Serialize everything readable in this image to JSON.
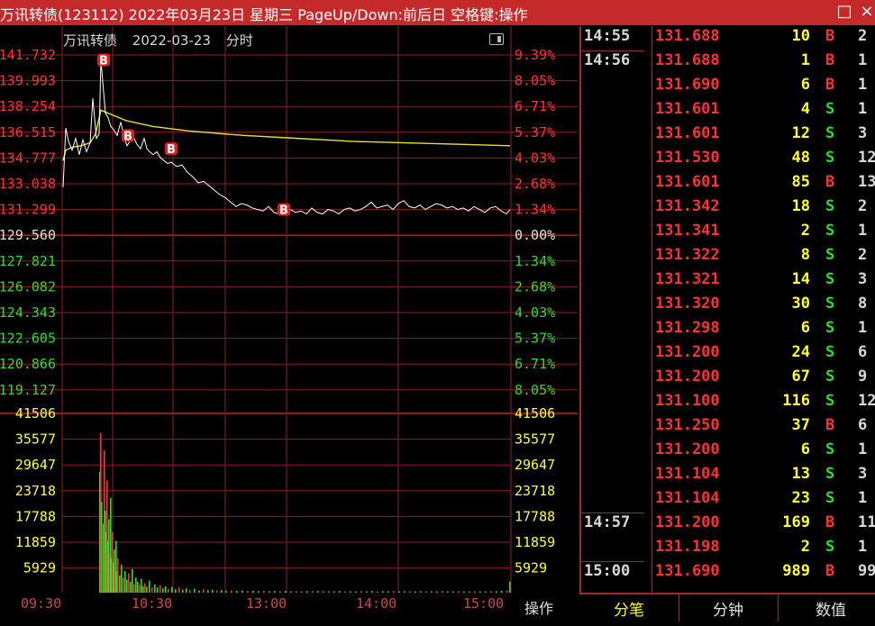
{
  "window": {
    "title": "万讯转债(123112) 2022年03月23日 星期三 PageUp/Down:前后日 空格键:操作",
    "maximize_icon": "□",
    "close_icon": "×"
  },
  "chart_header": {
    "name": "万讯转债",
    "date": "2022-03-23",
    "mode": "分时"
  },
  "colors": {
    "up": "#ff3333",
    "down": "#2fdc2f",
    "yellow": "#ffff33",
    "grid": "#8f1f1f",
    "price_line": "#ffffff",
    "avg_line": "#e8e030",
    "axis_red": "#c94a4a"
  },
  "chart_data": {
    "type": "line",
    "price_axis_left": [
      "141.732",
      "139.993",
      "138.254",
      "136.515",
      "134.777",
      "133.038",
      "131.299",
      "129.560",
      "127.821",
      "126.082",
      "124.343",
      "122.605",
      "120.866",
      "119.127"
    ],
    "pct_axis_right": [
      "9.39%",
      "8.05%",
      "6.71%",
      "5.37%",
      "4.03%",
      "2.68%",
      "1.34%",
      "0.00%",
      "1.34%",
      "2.68%",
      "4.03%",
      "5.37%",
      "6.71%",
      "8.05%"
    ],
    "prev_close": 129.56,
    "price_range": [
      119.127,
      141.732
    ],
    "volume_axis": [
      "41506",
      "35577",
      "29647",
      "23718",
      "17788",
      "11859",
      "5929"
    ],
    "volume_max": 41506,
    "x_labels": [
      "09:30",
      "10:30",
      "13:00",
      "14:00",
      "15:00"
    ],
    "price_series": [
      [
        0,
        132.8
      ],
      [
        3,
        136.8
      ],
      [
        6,
        135.9
      ],
      [
        10,
        135.3
      ],
      [
        14,
        136.1
      ],
      [
        18,
        135.0
      ],
      [
        22,
        136.0
      ],
      [
        26,
        135.2
      ],
      [
        30,
        135.8
      ],
      [
        33,
        138.8
      ],
      [
        37,
        136.1
      ],
      [
        40,
        136.4
      ],
      [
        42,
        141.4
      ],
      [
        45,
        139.2
      ],
      [
        47,
        137.8
      ],
      [
        50,
        137.5
      ],
      [
        53,
        136.9
      ],
      [
        56,
        136.7
      ],
      [
        60,
        136.3
      ],
      [
        64,
        137.2
      ],
      [
        68,
        136.1
      ],
      [
        71,
        135.6
      ],
      [
        74,
        135.9
      ],
      [
        78,
        136.2
      ],
      [
        82,
        135.7
      ],
      [
        86,
        135.4
      ],
      [
        90,
        136.1
      ],
      [
        93,
        135.4
      ],
      [
        96,
        135.2
      ],
      [
        100,
        135.0
      ],
      [
        104,
        135.2
      ],
      [
        108,
        134.8
      ],
      [
        112,
        134.6
      ],
      [
        116,
        134.4
      ],
      [
        120,
        134.5
      ],
      [
        126,
        134.2
      ],
      [
        132,
        134.3
      ],
      [
        138,
        133.8
      ],
      [
        144,
        133.5
      ],
      [
        150,
        133.1
      ],
      [
        156,
        133.2
      ],
      [
        162,
        132.9
      ],
      [
        168,
        132.6
      ],
      [
        174,
        132.3
      ],
      [
        180,
        132.1
      ],
      [
        186,
        131.8
      ],
      [
        192,
        131.5
      ],
      [
        198,
        131.7
      ],
      [
        204,
        131.6
      ],
      [
        210,
        131.4
      ],
      [
        216,
        131.3
      ],
      [
        222,
        131.2
      ],
      [
        228,
        131.5
      ],
      [
        234,
        131.1
      ],
      [
        240,
        131.0
      ],
      [
        246,
        131.2
      ],
      [
        252,
        131.3
      ],
      [
        258,
        131.1
      ],
      [
        264,
        131.2
      ],
      [
        270,
        131.0
      ],
      [
        276,
        131.4
      ],
      [
        282,
        131.1
      ],
      [
        288,
        131.0
      ],
      [
        294,
        131.3
      ],
      [
        300,
        131.2
      ],
      [
        306,
        131.0
      ],
      [
        312,
        131.3
      ],
      [
        318,
        131.4
      ],
      [
        324,
        131.2
      ],
      [
        330,
        131.3
      ],
      [
        336,
        131.5
      ],
      [
        342,
        131.8
      ],
      [
        348,
        131.4
      ],
      [
        354,
        131.5
      ],
      [
        360,
        131.6
      ],
      [
        366,
        131.3
      ],
      [
        372,
        131.7
      ],
      [
        378,
        131.9
      ],
      [
        384,
        131.5
      ],
      [
        390,
        131.4
      ],
      [
        396,
        131.6
      ],
      [
        402,
        131.3
      ],
      [
        408,
        131.5
      ],
      [
        414,
        131.7
      ],
      [
        420,
        131.6
      ],
      [
        426,
        131.4
      ],
      [
        432,
        131.5
      ],
      [
        438,
        131.3
      ],
      [
        444,
        131.4
      ],
      [
        450,
        131.2
      ],
      [
        456,
        131.5
      ],
      [
        462,
        131.3
      ],
      [
        468,
        131.1
      ],
      [
        474,
        131.4
      ],
      [
        480,
        131.5
      ],
      [
        486,
        131.2
      ],
      [
        492,
        131.0
      ],
      [
        496,
        131.3
      ]
    ],
    "avg_series": [
      [
        0,
        134.6
      ],
      [
        3,
        135.3
      ],
      [
        10,
        135.5
      ],
      [
        20,
        135.6
      ],
      [
        30,
        135.8
      ],
      [
        36,
        136.4
      ],
      [
        42,
        138.0
      ],
      [
        50,
        137.8
      ],
      [
        70,
        137.3
      ],
      [
        100,
        136.9
      ],
      [
        140,
        136.6
      ],
      [
        200,
        136.3
      ],
      [
        260,
        136.1
      ],
      [
        320,
        135.9
      ],
      [
        380,
        135.8
      ],
      [
        440,
        135.7
      ],
      [
        496,
        135.6
      ]
    ],
    "markers": [
      {
        "i": 45,
        "p": 141.4,
        "label": "B"
      },
      {
        "i": 72,
        "p": 136.3,
        "label": "B"
      },
      {
        "i": 120,
        "p": 135.4,
        "label": "B"
      },
      {
        "i": 245,
        "p": 131.3,
        "label": "B"
      }
    ],
    "volume_series": [
      [
        40,
        28000
      ],
      [
        41,
        37000
      ],
      [
        42,
        21000
      ],
      [
        44,
        16000
      ],
      [
        45,
        33000
      ],
      [
        46,
        19000
      ],
      [
        47,
        14000
      ],
      [
        48,
        26000
      ],
      [
        49,
        12000
      ],
      [
        50,
        17000
      ],
      [
        51,
        9000
      ],
      [
        52,
        22000
      ],
      [
        53,
        8000
      ],
      [
        54,
        14000
      ],
      [
        55,
        7000
      ],
      [
        56,
        10000
      ],
      [
        57,
        6000
      ],
      [
        58,
        12000
      ],
      [
        59,
        5000
      ],
      [
        60,
        8000
      ],
      [
        62,
        4000
      ],
      [
        64,
        6500
      ],
      [
        66,
        3500
      ],
      [
        68,
        5000
      ],
      [
        70,
        3000
      ],
      [
        72,
        4500
      ],
      [
        74,
        2500
      ],
      [
        76,
        5500
      ],
      [
        78,
        2000
      ],
      [
        80,
        3500
      ],
      [
        82,
        2500
      ],
      [
        84,
        1800
      ],
      [
        86,
        3200
      ],
      [
        88,
        1500
      ],
      [
        90,
        2200
      ],
      [
        92,
        1400
      ],
      [
        95,
        2800
      ],
      [
        98,
        1300
      ],
      [
        101,
        1900
      ],
      [
        104,
        1200
      ],
      [
        107,
        1700
      ],
      [
        110,
        1000
      ],
      [
        113,
        1500
      ],
      [
        116,
        900
      ],
      [
        120,
        1300
      ],
      [
        124,
        800
      ],
      [
        128,
        1200
      ],
      [
        132,
        700
      ],
      [
        136,
        1000
      ],
      [
        140,
        600
      ],
      [
        145,
        900
      ],
      [
        150,
        500
      ],
      [
        155,
        800
      ],
      [
        160,
        600
      ],
      [
        165,
        700
      ],
      [
        170,
        500
      ],
      [
        175,
        600
      ],
      [
        180,
        450
      ],
      [
        186,
        550
      ],
      [
        192,
        400
      ],
      [
        198,
        500
      ],
      [
        204,
        380
      ],
      [
        210,
        450
      ],
      [
        216,
        350
      ],
      [
        222,
        420
      ],
      [
        228,
        350
      ],
      [
        234,
        400
      ],
      [
        240,
        340
      ],
      [
        246,
        420
      ],
      [
        252,
        320
      ],
      [
        258,
        380
      ],
      [
        264,
        300
      ],
      [
        270,
        360
      ],
      [
        276,
        320
      ],
      [
        282,
        380
      ],
      [
        288,
        300
      ],
      [
        294,
        350
      ],
      [
        300,
        320
      ],
      [
        306,
        380
      ],
      [
        312,
        300
      ],
      [
        318,
        340
      ],
      [
        324,
        300
      ],
      [
        330,
        360
      ],
      [
        336,
        320
      ],
      [
        342,
        380
      ],
      [
        348,
        300
      ],
      [
        354,
        340
      ],
      [
        360,
        320
      ],
      [
        366,
        360
      ],
      [
        372,
        300
      ],
      [
        378,
        340
      ],
      [
        384,
        320
      ],
      [
        390,
        300
      ],
      [
        396,
        360
      ],
      [
        402,
        320
      ],
      [
        408,
        340
      ],
      [
        414,
        300
      ],
      [
        420,
        360
      ],
      [
        426,
        320
      ],
      [
        432,
        300
      ],
      [
        438,
        340
      ],
      [
        444,
        320
      ],
      [
        450,
        300
      ],
      [
        456,
        340
      ],
      [
        462,
        320
      ],
      [
        468,
        300
      ],
      [
        474,
        380
      ],
      [
        480,
        350
      ],
      [
        486,
        420
      ],
      [
        492,
        500
      ],
      [
        495,
        2600
      ]
    ],
    "pre_open_volume": [
      [
        0,
        0
      ]
    ]
  },
  "ticks": [
    {
      "time": "14:55",
      "price": "131.688",
      "vol": "10",
      "side": "B",
      "extra": "2"
    },
    {
      "time": "14:56",
      "price": "131.688",
      "vol": "1",
      "side": "B",
      "extra": "1"
    },
    {
      "time": "",
      "price": "131.690",
      "vol": "6",
      "side": "B",
      "extra": "1"
    },
    {
      "time": "",
      "price": "131.601",
      "vol": "4",
      "side": "S",
      "extra": "1"
    },
    {
      "time": "",
      "price": "131.601",
      "vol": "12",
      "side": "S",
      "extra": "3"
    },
    {
      "time": "",
      "price": "131.530",
      "vol": "48",
      "side": "S",
      "extra": "12"
    },
    {
      "time": "",
      "price": "131.601",
      "vol": "85",
      "side": "B",
      "extra": "13"
    },
    {
      "time": "",
      "price": "131.342",
      "vol": "18",
      "side": "S",
      "extra": "2"
    },
    {
      "time": "",
      "price": "131.341",
      "vol": "2",
      "side": "S",
      "extra": "1"
    },
    {
      "time": "",
      "price": "131.322",
      "vol": "8",
      "side": "S",
      "extra": "2"
    },
    {
      "time": "",
      "price": "131.321",
      "vol": "14",
      "side": "S",
      "extra": "3"
    },
    {
      "time": "",
      "price": "131.320",
      "vol": "30",
      "side": "S",
      "extra": "8"
    },
    {
      "time": "",
      "price": "131.298",
      "vol": "6",
      "side": "S",
      "extra": "1"
    },
    {
      "time": "",
      "price": "131.200",
      "vol": "24",
      "side": "S",
      "extra": "6"
    },
    {
      "time": "",
      "price": "131.200",
      "vol": "67",
      "side": "S",
      "extra": "9"
    },
    {
      "time": "",
      "price": "131.100",
      "vol": "116",
      "side": "S",
      "extra": "12"
    },
    {
      "time": "",
      "price": "131.250",
      "vol": "37",
      "side": "B",
      "extra": "6"
    },
    {
      "time": "",
      "price": "131.200",
      "vol": "6",
      "side": "S",
      "extra": "1"
    },
    {
      "time": "",
      "price": "131.104",
      "vol": "13",
      "side": "S",
      "extra": "3"
    },
    {
      "time": "",
      "price": "131.104",
      "vol": "23",
      "side": "S",
      "extra": "1"
    },
    {
      "time": "14:57",
      "price": "131.200",
      "vol": "169",
      "side": "B",
      "extra": "11"
    },
    {
      "time": "",
      "price": "131.198",
      "vol": "2",
      "side": "S",
      "extra": "1"
    },
    {
      "time": "15:00",
      "price": "131.690",
      "vol": "989",
      "side": "B",
      "extra": "99"
    }
  ],
  "tabs": [
    {
      "label": "分笔",
      "active": true
    },
    {
      "label": "分钟",
      "active": false
    },
    {
      "label": "数值",
      "active": false
    }
  ],
  "operate_label": "操作"
}
